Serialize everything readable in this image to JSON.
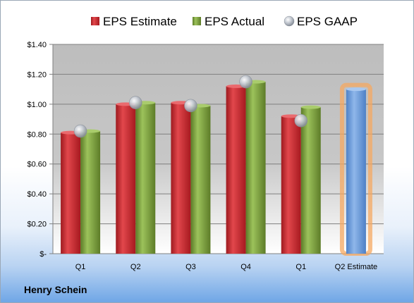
{
  "chart_data": {
    "type": "bar",
    "categories": [
      "Q1",
      "Q2",
      "Q3",
      "Q4",
      "Q1",
      "Q2 Estimate"
    ],
    "series": [
      {
        "name": "EPS Estimate",
        "values": [
          0.81,
          1.0,
          1.01,
          1.12,
          0.92,
          null
        ],
        "color": "#d63a3f"
      },
      {
        "name": "EPS Actual",
        "values": [
          0.82,
          1.01,
          0.99,
          1.15,
          0.98,
          null
        ],
        "color": "#7ea33f"
      },
      {
        "name": "EPS GAAP",
        "values": [
          0.82,
          1.01,
          0.99,
          1.15,
          0.89,
          null
        ],
        "color": "#b8bec8"
      }
    ],
    "estimate": {
      "category": "Q2 Estimate",
      "value": 1.1,
      "color": "#6e9fd9",
      "glow": "#f5a860"
    },
    "ylim": [
      0,
      1.4
    ],
    "yticks": [
      {
        "value": 0,
        "label": "$-"
      },
      {
        "value": 0.2,
        "label": "$0.20"
      },
      {
        "value": 0.4,
        "label": "$0.40"
      },
      {
        "value": 0.6,
        "label": "$0.60"
      },
      {
        "value": 0.8,
        "label": "$0.80"
      },
      {
        "value": 1.0,
        "label": "$1.00"
      },
      {
        "value": 1.2,
        "label": "$1.20"
      },
      {
        "value": 1.4,
        "label": "$1.40"
      }
    ],
    "legend_position": "top",
    "grid": true
  },
  "company": "Henry Schein"
}
